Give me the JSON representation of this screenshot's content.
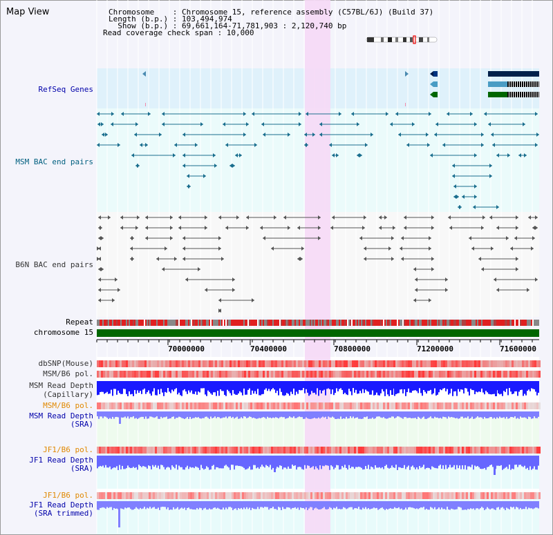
{
  "title": "Map View",
  "info": {
    "chromosome_line": "Chromosome    : Chromosome 15, reference assembly (C57BL/6J) (Build 37)",
    "length_line": "Length (b.p.) : 103,494,974",
    "show_line": "  Show (b.p.) : 69,661,164-71,781,903 : 2,120,740 bp",
    "coverage_line": "Read coverage check span : 10,000"
  },
  "tracks": {
    "refseq": "RefSeq Genes",
    "msm_bac": "MSM BAC end pairs",
    "b6n_bac": "B6N BAC end pairs",
    "repeat": "Repeat",
    "chromosome": "chromosome 15",
    "dbsnp": "dbSNP(Mouse)",
    "msm_b6_pol_1": "MSM/B6 pol.",
    "msm_depth_cap_1": "MSM Read Depth",
    "msm_depth_cap_2": "(Capillary)",
    "msm_b6_pol_2": "MSM/B6 pol.",
    "msm_depth_sra_1": "MSM Read Depth",
    "msm_depth_sra_2": "(SRA)",
    "jf1_b6_pol_1": "JF1/B6 pol.",
    "jf1_depth_sra_1": "JF1 Read Depth",
    "jf1_depth_sra_2": "(SRA)",
    "jf1_b6_pol_2": "JF1/B6 pol.",
    "jf1_depth_trim_1": "JF1 Read Depth",
    "jf1_depth_trim_2": "(SRA trimmed)"
  },
  "axis": {
    "ticks": [
      "70000000",
      "70400000",
      "70800000",
      "71200000",
      "71600000"
    ]
  },
  "colors": {
    "refseq_bg": "#dff1fb",
    "msm_bg": "#ebfbfb",
    "highlight": "#f6d9f6",
    "label_blue": "#0000aa",
    "label_teal": "#005f7f",
    "label_orange": "#e08800",
    "chromosome_green": "#006600",
    "depth_blue": "#1a1aff",
    "depth_lavender": "#8080ff"
  }
}
